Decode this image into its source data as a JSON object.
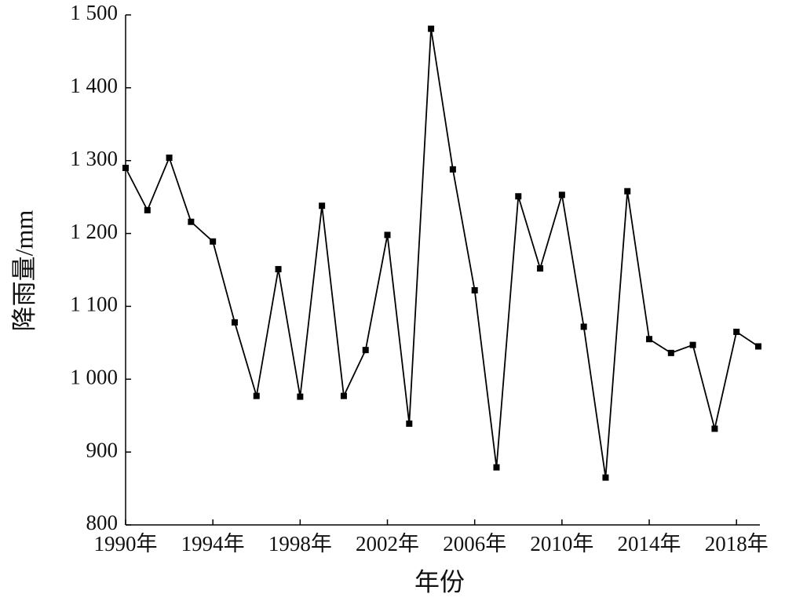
{
  "chart_data": {
    "type": "line",
    "y_label": "降雨量/mm",
    "x_label": "年份",
    "x": [
      1990,
      1991,
      1992,
      1993,
      1994,
      1995,
      1996,
      1997,
      1998,
      1999,
      2000,
      2001,
      2002,
      2003,
      2004,
      2005,
      2006,
      2007,
      2008,
      2009,
      2010,
      2011,
      2012,
      2013,
      2014,
      2015,
      2016,
      2017,
      2018,
      2019
    ],
    "series": [
      {
        "color": "#000000",
        "values": [
          1290,
          1232,
          1304,
          1216,
          1189,
          1078,
          977,
          1151,
          976,
          1238,
          977,
          1040,
          1198,
          939,
          1481,
          1288,
          1122,
          879,
          1251,
          1152,
          1253,
          1072,
          865,
          1258,
          1055,
          1036,
          1047,
          932,
          1065,
          1045
        ]
      }
    ],
    "xlim": [
      1990,
      2019
    ],
    "xticks": [
      {
        "value": 1990,
        "label": "1990年"
      },
      {
        "value": 1994,
        "label": "1994年"
      },
      {
        "value": 1998,
        "label": "1998年"
      },
      {
        "value": 2002,
        "label": "2002年"
      },
      {
        "value": 2006,
        "label": "2006年"
      },
      {
        "value": 2010,
        "label": "2010年"
      },
      {
        "value": 2014,
        "label": "2014年"
      },
      {
        "value": 2018,
        "label": "2018年"
      }
    ],
    "ylim": [
      800,
      1500
    ],
    "yticks": [
      800,
      900,
      {
        "value": 1000,
        "label": "1 000"
      },
      {
        "value": 1100,
        "label": "1 100"
      },
      {
        "value": 1200,
        "label": "1 200"
      },
      {
        "value": 1300,
        "label": "1 300"
      },
      {
        "value": 1400,
        "label": "1 400"
      },
      {
        "value": 1500,
        "label": "1 500"
      }
    ],
    "grid": false
  }
}
